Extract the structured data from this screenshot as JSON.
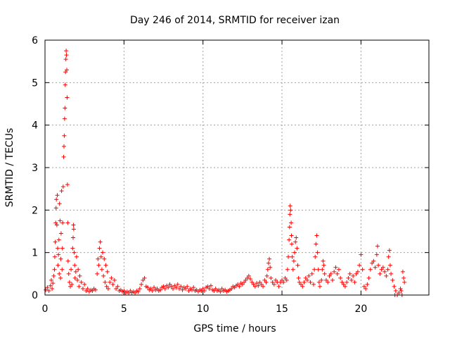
{
  "chart_data": {
    "type": "scatter",
    "title": "Day 246 of 2014, SRMTID for receiver izan",
    "xlabel": "GPS time / hours",
    "ylabel": "SRMTID / TECUs",
    "xlim": [
      0,
      24.3
    ],
    "ylim": [
      0,
      6
    ],
    "xticks": [
      0,
      5,
      10,
      15,
      20
    ],
    "yticks": [
      0,
      1,
      2,
      3,
      4,
      5,
      6
    ],
    "xtick_labels": [
      "0",
      "5",
      "10",
      "15",
      "20"
    ],
    "ytick_labels": [
      "0",
      "1",
      "2",
      "3",
      "4",
      "5",
      "6"
    ],
    "grid": true,
    "marker": "+",
    "color": "#ff0000",
    "series": [
      {
        "name": "SRMTID",
        "points": [
          [
            0.05,
            0.12
          ],
          [
            0.15,
            0.18
          ],
          [
            0.25,
            0.1
          ],
          [
            0.35,
            0.22
          ],
          [
            0.4,
            0.35
          ],
          [
            0.45,
            0.15
          ],
          [
            0.5,
            0.28
          ],
          [
            0.55,
            0.45
          ],
          [
            0.6,
            0.6
          ],
          [
            0.62,
            0.9
          ],
          [
            0.65,
            1.25
          ],
          [
            0.68,
            1.7
          ],
          [
            0.7,
            2.05
          ],
          [
            0.72,
            2.25
          ],
          [
            0.75,
            1.65
          ],
          [
            0.78,
            2.35
          ],
          [
            0.8,
            1.1
          ],
          [
            0.82,
            0.7
          ],
          [
            0.85,
            0.95
          ],
          [
            0.88,
            1.3
          ],
          [
            0.9,
            0.5
          ],
          [
            0.92,
            2.15
          ],
          [
            0.95,
            1.75
          ],
          [
            0.98,
            0.4
          ],
          [
            1.0,
            0.85
          ],
          [
            1.02,
            1.45
          ],
          [
            1.05,
            2.45
          ],
          [
            1.08,
            0.6
          ],
          [
            1.1,
            1.1
          ],
          [
            1.12,
            1.7
          ],
          [
            1.15,
            2.55
          ],
          [
            1.18,
            3.25
          ],
          [
            1.2,
            3.5
          ],
          [
            1.22,
            3.75
          ],
          [
            1.24,
            4.15
          ],
          [
            1.26,
            4.4
          ],
          [
            1.28,
            4.95
          ],
          [
            1.3,
            5.25
          ],
          [
            1.32,
            5.55
          ],
          [
            1.34,
            5.75
          ],
          [
            1.36,
            5.65
          ],
          [
            1.38,
            5.3
          ],
          [
            1.4,
            4.65
          ],
          [
            1.42,
            2.6
          ],
          [
            1.44,
            1.7
          ],
          [
            1.46,
            0.8
          ],
          [
            1.5,
            0.5
          ],
          [
            1.55,
            0.3
          ],
          [
            1.6,
            0.2
          ],
          [
            1.65,
            0.6
          ],
          [
            1.7,
            0.25
          ],
          [
            1.75,
            1.1
          ],
          [
            1.78,
            1.35
          ],
          [
            1.8,
            1.65
          ],
          [
            1.82,
            1.55
          ],
          [
            1.85,
            1.0
          ],
          [
            1.88,
            0.7
          ],
          [
            1.9,
            0.4
          ],
          [
            1.95,
            0.55
          ],
          [
            2.0,
            0.9
          ],
          [
            2.05,
            0.35
          ],
          [
            2.1,
            0.6
          ],
          [
            2.15,
            0.2
          ],
          [
            2.2,
            0.45
          ],
          [
            2.3,
            0.3
          ],
          [
            2.4,
            0.15
          ],
          [
            2.5,
            0.25
          ],
          [
            2.6,
            0.1
          ],
          [
            2.7,
            0.15
          ],
          [
            2.8,
            0.08
          ],
          [
            2.9,
            0.12
          ],
          [
            3.0,
            0.1
          ],
          [
            3.1,
            0.15
          ],
          [
            3.2,
            0.12
          ],
          [
            3.3,
            0.5
          ],
          [
            3.35,
            0.85
          ],
          [
            3.4,
            0.7
          ],
          [
            3.45,
            1.1
          ],
          [
            3.5,
            1.25
          ],
          [
            3.55,
            0.9
          ],
          [
            3.6,
            0.6
          ],
          [
            3.65,
            1.0
          ],
          [
            3.7,
            0.45
          ],
          [
            3.75,
            0.85
          ],
          [
            3.8,
            0.3
          ],
          [
            3.85,
            0.7
          ],
          [
            3.9,
            0.2
          ],
          [
            3.95,
            0.55
          ],
          [
            4.0,
            0.15
          ],
          [
            4.1,
            0.3
          ],
          [
            4.2,
            0.4
          ],
          [
            4.3,
            0.25
          ],
          [
            4.4,
            0.35
          ],
          [
            4.5,
            0.15
          ],
          [
            4.6,
            0.2
          ],
          [
            4.7,
            0.1
          ],
          [
            4.8,
            0.12
          ],
          [
            4.9,
            0.08
          ],
          [
            5.0,
            0.1
          ],
          [
            5.1,
            0.05
          ],
          [
            5.2,
            0.08
          ],
          [
            5.3,
            0.05
          ],
          [
            5.4,
            0.1
          ],
          [
            5.5,
            0.06
          ],
          [
            5.6,
            0.08
          ],
          [
            5.7,
            0.05
          ],
          [
            5.8,
            0.1
          ],
          [
            5.9,
            0.08
          ],
          [
            6.0,
            0.15
          ],
          [
            6.1,
            0.25
          ],
          [
            6.2,
            0.35
          ],
          [
            6.3,
            0.4
          ],
          [
            6.4,
            0.2
          ],
          [
            6.5,
            0.18
          ],
          [
            6.6,
            0.12
          ],
          [
            6.7,
            0.15
          ],
          [
            6.8,
            0.1
          ],
          [
            6.9,
            0.18
          ],
          [
            7.0,
            0.12
          ],
          [
            7.1,
            0.15
          ],
          [
            7.2,
            0.1
          ],
          [
            7.3,
            0.12
          ],
          [
            7.4,
            0.18
          ],
          [
            7.5,
            0.2
          ],
          [
            7.6,
            0.15
          ],
          [
            7.7,
            0.22
          ],
          [
            7.8,
            0.18
          ],
          [
            7.9,
            0.25
          ],
          [
            8.0,
            0.2
          ],
          [
            8.1,
            0.15
          ],
          [
            8.2,
            0.22
          ],
          [
            8.3,
            0.18
          ],
          [
            8.4,
            0.25
          ],
          [
            8.5,
            0.15
          ],
          [
            8.6,
            0.2
          ],
          [
            8.7,
            0.12
          ],
          [
            8.8,
            0.18
          ],
          [
            8.9,
            0.15
          ],
          [
            9.0,
            0.2
          ],
          [
            9.1,
            0.1
          ],
          [
            9.2,
            0.15
          ],
          [
            9.3,
            0.12
          ],
          [
            9.4,
            0.18
          ],
          [
            9.5,
            0.1
          ],
          [
            9.6,
            0.12
          ],
          [
            9.7,
            0.08
          ],
          [
            9.8,
            0.12
          ],
          [
            9.9,
            0.1
          ],
          [
            10.0,
            0.15
          ],
          [
            10.1,
            0.1
          ],
          [
            10.2,
            0.18
          ],
          [
            10.3,
            0.2
          ],
          [
            10.4,
            0.15
          ],
          [
            10.5,
            0.22
          ],
          [
            10.6,
            0.12
          ],
          [
            10.7,
            0.1
          ],
          [
            10.8,
            0.15
          ],
          [
            10.9,
            0.1
          ],
          [
            11.0,
            0.12
          ],
          [
            11.1,
            0.08
          ],
          [
            11.2,
            0.15
          ],
          [
            11.3,
            0.1
          ],
          [
            11.4,
            0.12
          ],
          [
            11.5,
            0.08
          ],
          [
            11.6,
            0.1
          ],
          [
            11.7,
            0.12
          ],
          [
            11.8,
            0.15
          ],
          [
            11.9,
            0.2
          ],
          [
            12.0,
            0.18
          ],
          [
            12.1,
            0.22
          ],
          [
            12.2,
            0.25
          ],
          [
            12.3,
            0.2
          ],
          [
            12.4,
            0.28
          ],
          [
            12.5,
            0.25
          ],
          [
            12.6,
            0.3
          ],
          [
            12.7,
            0.35
          ],
          [
            12.8,
            0.4
          ],
          [
            12.9,
            0.45
          ],
          [
            13.0,
            0.38
          ],
          [
            13.1,
            0.3
          ],
          [
            13.2,
            0.25
          ],
          [
            13.3,
            0.2
          ],
          [
            13.4,
            0.28
          ],
          [
            13.5,
            0.22
          ],
          [
            13.6,
            0.3
          ],
          [
            13.7,
            0.25
          ],
          [
            13.8,
            0.2
          ],
          [
            13.9,
            0.35
          ],
          [
            14.0,
            0.3
          ],
          [
            14.05,
            0.45
          ],
          [
            14.1,
            0.6
          ],
          [
            14.15,
            0.75
          ],
          [
            14.2,
            0.85
          ],
          [
            14.25,
            0.65
          ],
          [
            14.3,
            0.4
          ],
          [
            14.4,
            0.3
          ],
          [
            14.5,
            0.25
          ],
          [
            14.6,
            0.35
          ],
          [
            14.7,
            0.3
          ],
          [
            14.8,
            0.2
          ],
          [
            14.9,
            0.3
          ],
          [
            15.0,
            0.35
          ],
          [
            15.1,
            0.3
          ],
          [
            15.2,
            0.4
          ],
          [
            15.3,
            0.35
          ],
          [
            15.35,
            0.6
          ],
          [
            15.4,
            0.9
          ],
          [
            15.45,
            1.3
          ],
          [
            15.48,
            1.6
          ],
          [
            15.5,
            1.9
          ],
          [
            15.52,
            2.1
          ],
          [
            15.55,
            2.0
          ],
          [
            15.58,
            1.7
          ],
          [
            15.6,
            1.4
          ],
          [
            15.62,
            1.2
          ],
          [
            15.65,
            0.9
          ],
          [
            15.7,
            0.6
          ],
          [
            15.75,
            0.8
          ],
          [
            15.8,
            1.0
          ],
          [
            15.85,
            1.25
          ],
          [
            15.9,
            1.35
          ],
          [
            15.95,
            1.1
          ],
          [
            16.0,
            0.7
          ],
          [
            16.05,
            0.4
          ],
          [
            16.1,
            0.3
          ],
          [
            16.2,
            0.25
          ],
          [
            16.3,
            0.2
          ],
          [
            16.4,
            0.3
          ],
          [
            16.5,
            0.4
          ],
          [
            16.6,
            0.35
          ],
          [
            16.7,
            0.45
          ],
          [
            16.8,
            0.3
          ],
          [
            16.9,
            0.5
          ],
          [
            17.0,
            0.25
          ],
          [
            17.05,
            0.6
          ],
          [
            17.1,
            0.9
          ],
          [
            17.15,
            1.2
          ],
          [
            17.2,
            1.4
          ],
          [
            17.25,
            1.0
          ],
          [
            17.3,
            0.6
          ],
          [
            17.35,
            0.3
          ],
          [
            17.4,
            0.2
          ],
          [
            17.5,
            0.35
          ],
          [
            17.55,
            0.6
          ],
          [
            17.6,
            0.8
          ],
          [
            17.65,
            0.7
          ],
          [
            17.7,
            0.5
          ],
          [
            17.8,
            0.35
          ],
          [
            17.9,
            0.3
          ],
          [
            18.0,
            0.45
          ],
          [
            18.1,
            0.5
          ],
          [
            18.2,
            0.35
          ],
          [
            18.3,
            0.55
          ],
          [
            18.4,
            0.65
          ],
          [
            18.5,
            0.5
          ],
          [
            18.6,
            0.6
          ],
          [
            18.7,
            0.4
          ],
          [
            18.8,
            0.3
          ],
          [
            18.9,
            0.25
          ],
          [
            19.0,
            0.2
          ],
          [
            19.1,
            0.3
          ],
          [
            19.2,
            0.4
          ],
          [
            19.3,
            0.5
          ],
          [
            19.4,
            0.35
          ],
          [
            19.5,
            0.45
          ],
          [
            19.6,
            0.3
          ],
          [
            19.7,
            0.5
          ],
          [
            19.8,
            0.55
          ],
          [
            19.9,
            0.7
          ],
          [
            20.0,
            0.95
          ],
          [
            20.1,
            0.6
          ],
          [
            20.2,
            0.2
          ],
          [
            20.3,
            0.15
          ],
          [
            20.4,
            0.25
          ],
          [
            20.5,
            0.4
          ],
          [
            20.6,
            0.6
          ],
          [
            20.7,
            0.75
          ],
          [
            20.8,
            0.8
          ],
          [
            20.9,
            0.65
          ],
          [
            21.0,
            0.95
          ],
          [
            21.05,
            1.15
          ],
          [
            21.1,
            0.7
          ],
          [
            21.2,
            0.5
          ],
          [
            21.3,
            0.6
          ],
          [
            21.4,
            0.65
          ],
          [
            21.5,
            0.55
          ],
          [
            21.6,
            0.45
          ],
          [
            21.7,
            0.6
          ],
          [
            21.75,
            0.9
          ],
          [
            21.8,
            1.05
          ],
          [
            21.85,
            0.7
          ],
          [
            21.9,
            0.5
          ],
          [
            22.0,
            0.35
          ],
          [
            22.1,
            0.2
          ],
          [
            22.15,
            0.0
          ],
          [
            22.2,
            0.1
          ],
          [
            22.3,
            0.0
          ],
          [
            22.4,
            0.05
          ],
          [
            22.5,
            0.15
          ],
          [
            22.55,
            0.1
          ],
          [
            22.6,
            0.0
          ],
          [
            22.65,
            0.55
          ],
          [
            22.7,
            0.4
          ],
          [
            22.75,
            0.3
          ]
        ]
      }
    ]
  }
}
